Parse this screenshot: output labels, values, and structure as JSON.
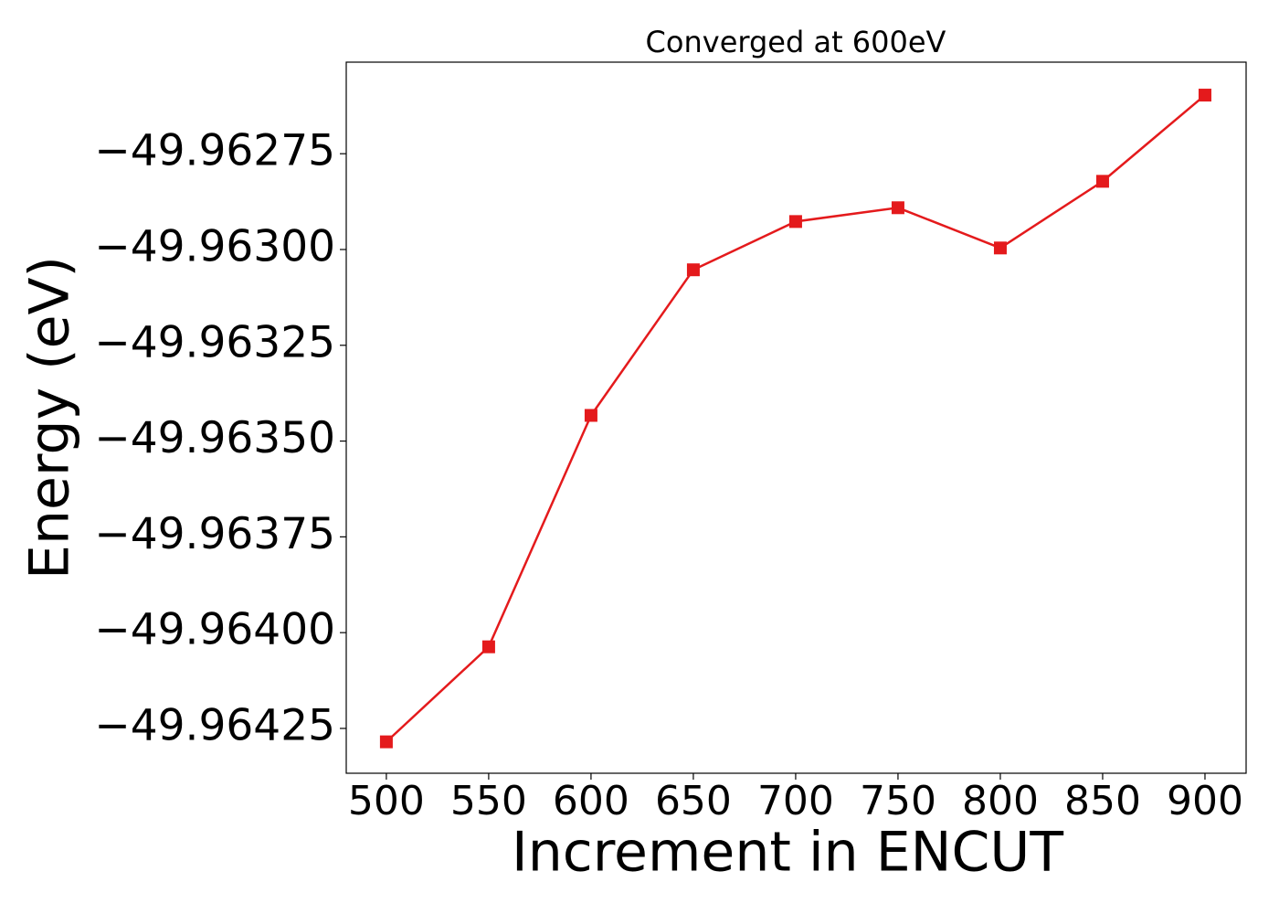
{
  "chart_data": {
    "type": "line",
    "title": "Converged at 600eV",
    "x_label": "Increment in ENCUT",
    "y_label": "Energy (eV)",
    "x": [
      500,
      550,
      600,
      650,
      700,
      750,
      800,
      850,
      900
    ],
    "values": [
      -49.964285,
      -49.964037,
      -49.963433,
      -49.963053,
      -49.962927,
      -49.962891,
      -49.962996,
      -49.962822,
      -49.962597
    ],
    "color": "#e41a1c",
    "marker": "square",
    "xlim": [
      480.4,
      920.1
    ],
    "ylim": [
      -49.964367,
      -49.962511
    ],
    "xticks": [
      500,
      550,
      600,
      650,
      700,
      750,
      800,
      850,
      900
    ],
    "yticks": [
      {
        "value": -49.96275,
        "label": "−49.96275"
      },
      {
        "value": -49.963,
        "label": "−49.96300"
      },
      {
        "value": -49.96325,
        "label": "−49.96325"
      },
      {
        "value": -49.9635,
        "label": "−49.96350"
      },
      {
        "value": -49.96375,
        "label": "−49.96375"
      },
      {
        "value": -49.964,
        "label": "−49.96400"
      },
      {
        "value": -49.96425,
        "label": "−49.96425"
      }
    ],
    "grid": false
  }
}
